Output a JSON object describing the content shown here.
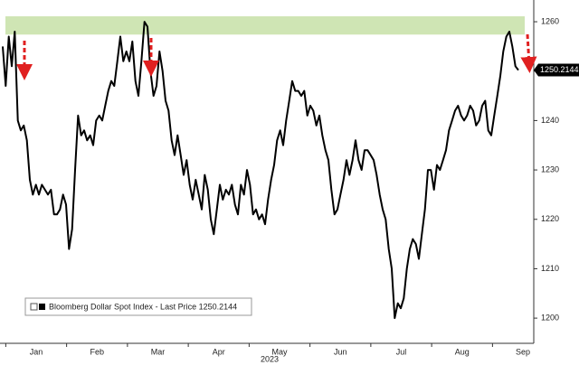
{
  "chart_data": {
    "type": "line",
    "xlabels": [
      "Jan",
      "Feb",
      "Mar",
      "Apr",
      "May",
      "Jun",
      "Jul",
      "Aug",
      "Sep"
    ],
    "xlabel": "2023",
    "series": [
      {
        "name": "Bloomberg Dollar Spot Index - Last Price 1250.2144",
        "color": "#000000",
        "values": [
          1255,
          1247,
          1257,
          1251,
          1258,
          1240,
          1238,
          1239,
          1236,
          1228,
          1225,
          1227,
          1225,
          1227,
          1226,
          1225,
          1226,
          1221,
          1221,
          1222,
          1225,
          1223,
          1214,
          1218,
          1230,
          1241,
          1237,
          1238,
          1236,
          1237,
          1235,
          1240,
          1241,
          1240,
          1243,
          1246,
          1248,
          1247,
          1252,
          1257,
          1252,
          1254,
          1252,
          1256,
          1248,
          1245,
          1252,
          1260,
          1259,
          1250,
          1245,
          1247,
          1254,
          1250,
          1244,
          1242,
          1236,
          1233,
          1237,
          1233,
          1229,
          1232,
          1227,
          1224,
          1228,
          1225,
          1222,
          1229,
          1226,
          1220,
          1217,
          1222,
          1227,
          1224,
          1226,
          1225,
          1227,
          1223,
          1221,
          1227,
          1225,
          1230,
          1227,
          1221,
          1222,
          1220,
          1221,
          1219,
          1224,
          1228,
          1231,
          1236,
          1238,
          1235,
          1240,
          1244,
          1248,
          1246,
          1246,
          1245,
          1246,
          1241,
          1243,
          1242,
          1239,
          1241,
          1237,
          1234,
          1232,
          1226,
          1221,
          1222,
          1225,
          1228,
          1232,
          1229,
          1232,
          1236,
          1232,
          1230,
          1234,
          1234,
          1233,
          1232,
          1229,
          1225,
          1222,
          1220,
          1214,
          1210,
          1200,
          1203,
          1202,
          1204,
          1210,
          1214,
          1216,
          1215,
          1212,
          1217,
          1222,
          1230,
          1230,
          1226,
          1231,
          1230,
          1232,
          1234,
          1238,
          1240,
          1242,
          1243,
          1241,
          1240,
          1241,
          1243,
          1242,
          1239,
          1240,
          1243,
          1244,
          1238,
          1237,
          1241,
          1245,
          1249,
          1254,
          1257,
          1258,
          1255,
          1251,
          1250.2144
        ]
      }
    ],
    "ylim": [
      1194.9,
      1264.4
    ],
    "yticks": [
      1200,
      1210,
      1220,
      1230,
      1240,
      1250,
      1260
    ],
    "highlight_range": [
      1257.4,
      1261.1
    ],
    "highlight_color": "#cfe5b4",
    "grid": false
  }
}
